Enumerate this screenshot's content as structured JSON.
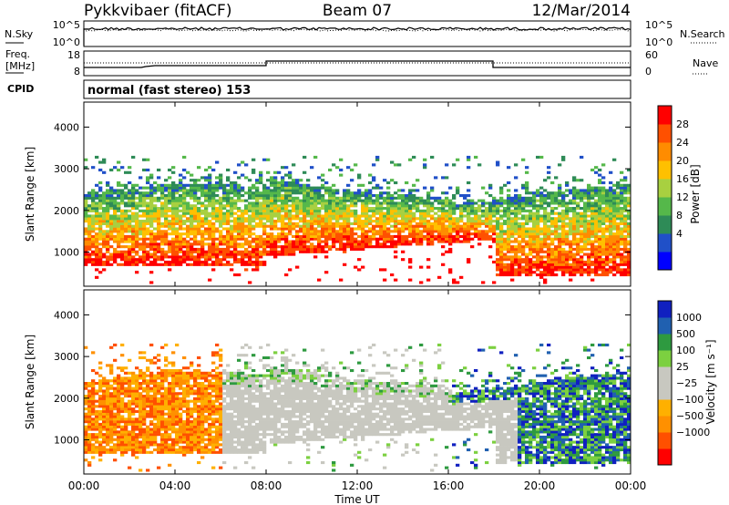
{
  "header": {
    "station": "Pykkvibaer (fitACF)",
    "beam": "Beam 07",
    "date": "12/Mar/2014"
  },
  "noise_panel": {
    "left_label": "N.Sky",
    "right_label": "N.Search",
    "left_ticks": [
      "10^5",
      "10^0"
    ],
    "right_ticks": [
      "10^5",
      "10^0"
    ]
  },
  "freq_panel": {
    "left_label_line1": "Freq.",
    "left_label_line2": "[MHz]",
    "right_label": "Nave",
    "left_ticks": [
      "18",
      "8"
    ],
    "right_ticks": [
      "60",
      "0"
    ]
  },
  "cpid": {
    "label": "CPID",
    "text": "normal (fast stereo) 153"
  },
  "chart_data": [
    {
      "type": "heatmap",
      "name": "power",
      "ylabel": "Slant Range [km]",
      "yticks": [
        1000,
        2000,
        3000,
        4000
      ],
      "ylim": [
        180,
        4600
      ],
      "colorbar_label": "Power [dB]",
      "colorbar_ticks": [
        "28",
        "24",
        "20",
        "16",
        "12",
        "8",
        "4"
      ],
      "colorbar_colors": [
        "#0000ff",
        "#2050c8",
        "#2e8b57",
        "#55b84a",
        "#a8d040",
        "#ffc000",
        "#ff8c00",
        "#ff5000",
        "#ff0000"
      ]
    },
    {
      "type": "heatmap",
      "name": "velocity",
      "ylabel": "Slant Range [km]",
      "yticks": [
        1000,
        2000,
        3000,
        4000
      ],
      "ylim": [
        180,
        4600
      ],
      "colorbar_label": "Velocity [m s⁻¹]",
      "colorbar_ticks": [
        "1000",
        "500",
        "100",
        "25",
        "−25",
        "−100",
        "−500",
        "−1000"
      ],
      "colorbar_colors": [
        "#ff0000",
        "#ff5000",
        "#ff9000",
        "#ffb000",
        "#c8c8c0",
        "#c8c8c0",
        "#7cd040",
        "#2e9a40",
        "#2060b0",
        "#1020c0"
      ]
    }
  ],
  "time_axis": {
    "xlabel": "Time UT",
    "ticks": [
      "00:00",
      "04:00",
      "08:00",
      "12:00",
      "16:00",
      "20:00",
      "00:00"
    ]
  },
  "colors": {
    "ground_scatter": "#c8c8c0",
    "power_strong": "#ff2000",
    "power_weak": "#2050c8"
  }
}
